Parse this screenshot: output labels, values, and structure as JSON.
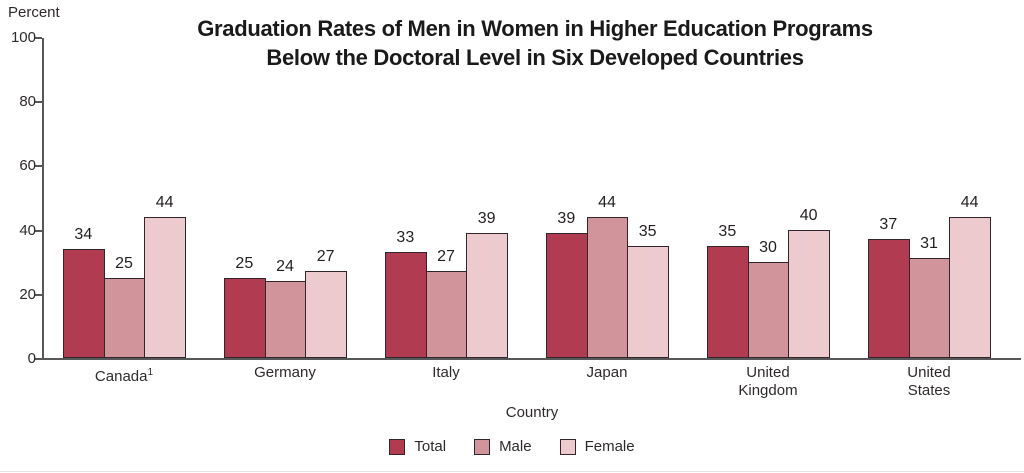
{
  "title": {
    "line1": "Graduation Rates of Men in Women in Higher Education Programs",
    "line2": "Below the Doctoral Level in Six Developed Countries"
  },
  "colors": {
    "total": "#b13b51",
    "male": "#d0949a",
    "female": "#eccacd",
    "bar_border": "#33232a",
    "axis": "#57585a",
    "text": "#231f20"
  },
  "chart_data": {
    "type": "bar",
    "title": "Graduation Rates of Men in Women in Higher Education Programs Below the Doctoral Level in Six Developed Countries",
    "xlabel": "Country",
    "ylabel": "Percent",
    "ylim": [
      0,
      100
    ],
    "y_ticks": [
      0,
      20,
      40,
      60,
      80,
      100
    ],
    "grid": false,
    "legend_position": "bottom",
    "categories": [
      "Canada",
      "Germany",
      "Italy",
      "Japan",
      "United Kingdom",
      "United States"
    ],
    "category_display": [
      {
        "lines": [
          "Canada"
        ],
        "footnote": "1"
      },
      {
        "lines": [
          "Germany"
        ]
      },
      {
        "lines": [
          "Italy"
        ]
      },
      {
        "lines": [
          "Japan"
        ]
      },
      {
        "lines": [
          "United",
          "Kingdom"
        ]
      },
      {
        "lines": [
          "United",
          "States"
        ]
      }
    ],
    "series": [
      {
        "name": "Total",
        "color_key": "total",
        "values": [
          34,
          25,
          33,
          39,
          35,
          37
        ]
      },
      {
        "name": "Male",
        "color_key": "male",
        "values": [
          25,
          24,
          27,
          44,
          30,
          31
        ]
      },
      {
        "name": "Female",
        "color_key": "female",
        "values": [
          44,
          27,
          39,
          35,
          40,
          44
        ]
      }
    ]
  }
}
